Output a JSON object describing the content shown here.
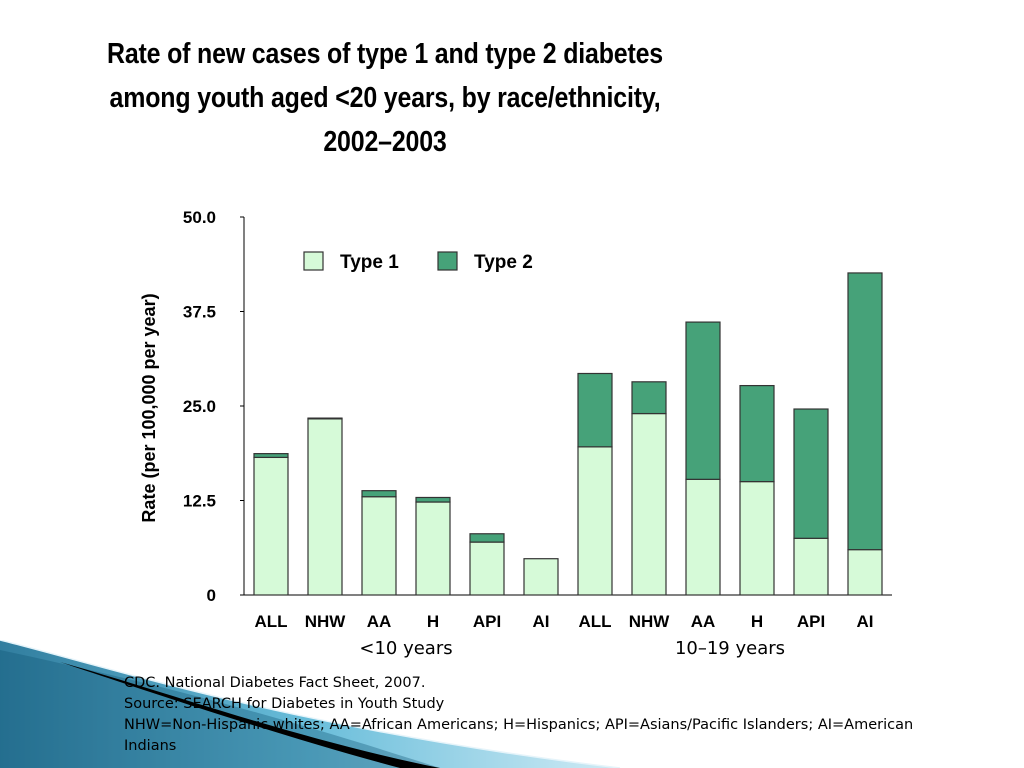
{
  "title": {
    "line1": "Rate of new cases of type 1 and type 2 diabetes",
    "line2": "among youth aged <20 years, by race/ethnicity,",
    "line3": "2002–2003"
  },
  "chart_data": {
    "type": "bar",
    "stacked": true,
    "ylabel": "Rate (per 100,000 per year)",
    "ylim": [
      0,
      50
    ],
    "yticks": [
      0,
      12.5,
      25,
      37.5,
      50
    ],
    "ytick_labels": [
      "0",
      "12.5",
      "25.0",
      "37.5",
      "50.0"
    ],
    "categories": [
      "ALL",
      "NHW",
      "AA",
      "H",
      "API",
      "AI",
      "ALL",
      "NHW",
      "AA",
      "H",
      "API",
      "AI"
    ],
    "groups": [
      {
        "label": "<10 years",
        "categories": [
          0,
          1,
          2,
          3,
          4,
          5
        ]
      },
      {
        "label": "10–19 years",
        "categories": [
          6,
          7,
          8,
          9,
          10,
          11
        ]
      }
    ],
    "series": [
      {
        "name": "Type 1",
        "color": "#d6fad8",
        "values": [
          18.2,
          23.3,
          13.0,
          12.3,
          7.0,
          4.8,
          19.6,
          24.0,
          15.3,
          15.0,
          7.5,
          6.0
        ]
      },
      {
        "name": "Type 2",
        "color": "#46a279",
        "values": [
          0.5,
          0.1,
          0.8,
          0.6,
          1.1,
          0.0,
          9.7,
          4.2,
          20.8,
          12.7,
          17.1,
          36.6
        ]
      }
    ],
    "legend": "top"
  },
  "notes": {
    "line1": "CDC. National Diabetes Fact Sheet, 2007.",
    "line2": "Source: SEARCH for Diabetes in Youth Study",
    "line3": "NHW=Non-Hispanic whites; AA=African Americans; H=Hispanics; API=Asians/Pacific Islanders; AI=American",
    "line4": "Indians"
  }
}
